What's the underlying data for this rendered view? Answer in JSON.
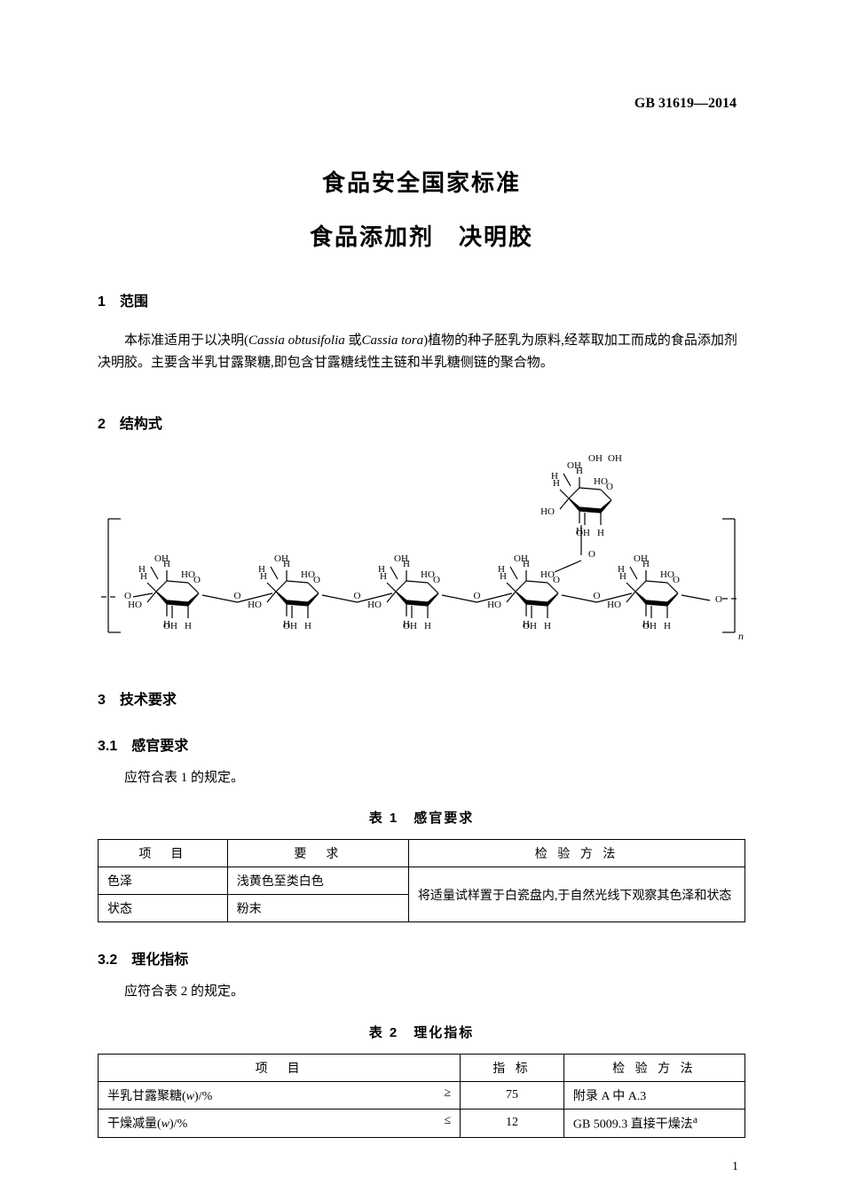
{
  "header_code": "GB 31619—2014",
  "title_main": "食品安全国家标准",
  "title_sub": "食品添加剂　决明胶",
  "s1": {
    "heading": "1　范围",
    "text_a": "本标准适用于以决明(",
    "italic1": "Cassia obtusifolia ",
    "text_b": "或",
    "italic2": "Cassia tora",
    "text_c": ")植物的种子胚乳为原料,经萃取加工而成的食品添加剂决明胶。主要含半乳甘露聚糖,即包含甘露糖线性主链和半乳糖侧链的聚合物。"
  },
  "s2": {
    "heading": "2　结构式"
  },
  "s3": {
    "heading": "3　技术要求"
  },
  "s31": {
    "heading": "3.1　感官要求",
    "text": "应符合表 1 的规定。"
  },
  "table1": {
    "title": "表 1　感官要求",
    "h1": "项　目",
    "h2": "要　求",
    "h3": "检 验 方 法",
    "r1c1": "色泽",
    "r1c2": "浅黄色至类白色",
    "r2c1": "状态",
    "r2c2": "粉末",
    "method": "将适量试样置于白瓷盘内,于自然光线下观察其色泽和状态"
  },
  "s32": {
    "heading": "3.2　理化指标",
    "text": "应符合表 2 的规定。"
  },
  "table2": {
    "title": "表 2　理化指标",
    "h1": "项　目",
    "h2": "指 标",
    "h3": "检 验 方 法",
    "r1c1a": "半乳甘露聚糖(",
    "r1c1_w": "w",
    "r1c1b": ")/%",
    "r1op": "≥",
    "r1c2": "75",
    "r1c3": "附录 A 中 A.3",
    "r2c1a": "干燥减量(",
    "r2c1_w": "w",
    "r2c1b": ")/%",
    "r2op": "≤",
    "r2c2": "12",
    "r2c3a": "GB 5009.3 直接干燥法",
    "r2sup": "a"
  },
  "page_num": "1",
  "chem": {
    "stroke": "#000000",
    "stroke_width": 1.2,
    "font": "Times New Roman",
    "font_size": 11
  }
}
